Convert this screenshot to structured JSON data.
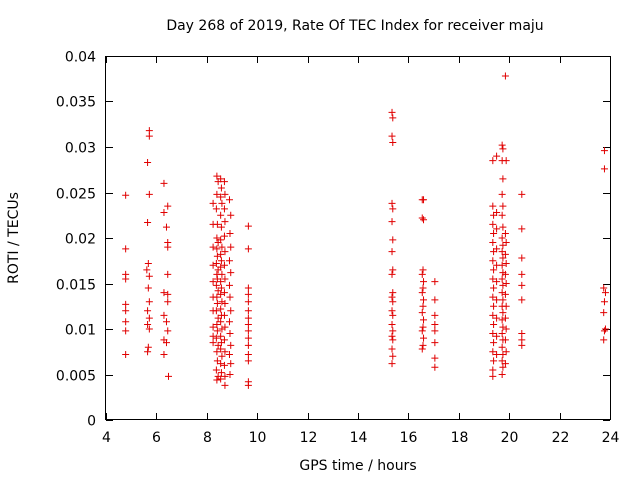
{
  "chart_data": {
    "type": "scatter",
    "title": "Day 268 of 2019, Rate Of TEC Index for receiver maju",
    "xlabel": "GPS time / hours",
    "ylabel": "ROTI / TECUs",
    "xlim": [
      4,
      24
    ],
    "ylim": [
      0,
      0.04
    ],
    "x_ticks": [
      "4",
      "6",
      "8",
      "10",
      "12",
      "14",
      "16",
      "18",
      "20",
      "22",
      "24"
    ],
    "y_ticks": [
      "0",
      "0.005",
      "0.01",
      "0.015",
      "0.02",
      "0.025",
      "0.03",
      "0.035",
      "0.04"
    ],
    "marker": "plus",
    "color": "#e00000",
    "points": [
      [
        4.78,
        0.0247
      ],
      [
        4.78,
        0.0188
      ],
      [
        4.78,
        0.016
      ],
      [
        4.78,
        0.0155
      ],
      [
        4.78,
        0.0127
      ],
      [
        4.78,
        0.012
      ],
      [
        4.78,
        0.0108
      ],
      [
        4.78,
        0.0098
      ],
      [
        4.78,
        0.0072
      ],
      [
        5.65,
        0.0283
      ],
      [
        5.72,
        0.0318
      ],
      [
        5.72,
        0.0312
      ],
      [
        5.72,
        0.0248
      ],
      [
        5.65,
        0.0217
      ],
      [
        5.68,
        0.0172
      ],
      [
        5.62,
        0.0165
      ],
      [
        5.72,
        0.0158
      ],
      [
        5.68,
        0.0145
      ],
      [
        5.72,
        0.013
      ],
      [
        5.65,
        0.012
      ],
      [
        5.72,
        0.0112
      ],
      [
        5.65,
        0.0105
      ],
      [
        5.72,
        0.01
      ],
      [
        5.68,
        0.008
      ],
      [
        5.65,
        0.0075
      ],
      [
        6.3,
        0.026
      ],
      [
        6.3,
        0.0228
      ],
      [
        6.45,
        0.0235
      ],
      [
        6.4,
        0.0212
      ],
      [
        6.45,
        0.0195
      ],
      [
        6.45,
        0.019
      ],
      [
        6.3,
        0.014
      ],
      [
        6.45,
        0.0138
      ],
      [
        6.45,
        0.016
      ],
      [
        6.45,
        0.013
      ],
      [
        6.3,
        0.0115
      ],
      [
        6.4,
        0.0108
      ],
      [
        6.45,
        0.0098
      ],
      [
        6.3,
        0.0088
      ],
      [
        6.4,
        0.0085
      ],
      [
        6.3,
        0.0072
      ],
      [
        6.48,
        0.0048
      ],
      [
        8.25,
        0.0238
      ],
      [
        8.25,
        0.0215
      ],
      [
        8.25,
        0.019
      ],
      [
        8.25,
        0.017
      ],
      [
        8.25,
        0.0152
      ],
      [
        8.25,
        0.0135
      ],
      [
        8.25,
        0.012
      ],
      [
        8.25,
        0.0102
      ],
      [
        8.25,
        0.0092
      ],
      [
        8.25,
        0.0085
      ],
      [
        8.4,
        0.0268
      ],
      [
        8.45,
        0.0262
      ],
      [
        8.4,
        0.0248
      ],
      [
        8.38,
        0.0232
      ],
      [
        8.42,
        0.0215
      ],
      [
        8.4,
        0.02
      ],
      [
        8.45,
        0.0195
      ],
      [
        8.4,
        0.0188
      ],
      [
        8.42,
        0.018
      ],
      [
        8.38,
        0.0172
      ],
      [
        8.45,
        0.0165
      ],
      [
        8.4,
        0.016
      ],
      [
        8.42,
        0.0155
      ],
      [
        8.38,
        0.0148
      ],
      [
        8.45,
        0.0142
      ],
      [
        8.4,
        0.0135
      ],
      [
        8.42,
        0.0128
      ],
      [
        8.38,
        0.012
      ],
      [
        8.45,
        0.0112
      ],
      [
        8.4,
        0.0105
      ],
      [
        8.42,
        0.0098
      ],
      [
        8.38,
        0.009
      ],
      [
        8.45,
        0.0082
      ],
      [
        8.4,
        0.0075
      ],
      [
        8.42,
        0.0065
      ],
      [
        8.38,
        0.0055
      ],
      [
        8.45,
        0.0048
      ],
      [
        8.4,
        0.0044
      ],
      [
        8.55,
        0.0265
      ],
      [
        8.58,
        0.0255
      ],
      [
        8.55,
        0.0245
      ],
      [
        8.6,
        0.0238
      ],
      [
        8.55,
        0.0225
      ],
      [
        8.58,
        0.0212
      ],
      [
        8.55,
        0.0198
      ],
      [
        8.6,
        0.019
      ],
      [
        8.55,
        0.0182
      ],
      [
        8.58,
        0.0175
      ],
      [
        8.55,
        0.0168
      ],
      [
        8.6,
        0.016
      ],
      [
        8.55,
        0.0152
      ],
      [
        8.58,
        0.0145
      ],
      [
        8.55,
        0.0138
      ],
      [
        8.6,
        0.013
      ],
      [
        8.55,
        0.0122
      ],
      [
        8.58,
        0.0115
      ],
      [
        8.55,
        0.0108
      ],
      [
        8.6,
        0.01
      ],
      [
        8.55,
        0.0092
      ],
      [
        8.58,
        0.0085
      ],
      [
        8.55,
        0.0078
      ],
      [
        8.6,
        0.007
      ],
      [
        8.55,
        0.0062
      ],
      [
        8.58,
        0.0052
      ],
      [
        8.55,
        0.0045
      ],
      [
        8.7,
        0.0262
      ],
      [
        8.72,
        0.0248
      ],
      [
        8.7,
        0.0232
      ],
      [
        8.72,
        0.0218
      ],
      [
        8.7,
        0.0202
      ],
      [
        8.72,
        0.0185
      ],
      [
        8.7,
        0.017
      ],
      [
        8.72,
        0.0155
      ],
      [
        8.7,
        0.014
      ],
      [
        8.72,
        0.0128
      ],
      [
        8.7,
        0.0115
      ],
      [
        8.72,
        0.0102
      ],
      [
        8.7,
        0.0088
      ],
      [
        8.72,
        0.0075
      ],
      [
        8.7,
        0.006
      ],
      [
        8.72,
        0.0048
      ],
      [
        8.72,
        0.0038
      ],
      [
        8.9,
        0.0242
      ],
      [
        8.95,
        0.0225
      ],
      [
        8.92,
        0.0205
      ],
      [
        8.95,
        0.019
      ],
      [
        8.9,
        0.0175
      ],
      [
        8.95,
        0.0162
      ],
      [
        8.9,
        0.0148
      ],
      [
        8.92,
        0.0135
      ],
      [
        8.95,
        0.012
      ],
      [
        8.9,
        0.0108
      ],
      [
        8.92,
        0.0095
      ],
      [
        8.95,
        0.0082
      ],
      [
        8.9,
        0.0072
      ],
      [
        8.95,
        0.0062
      ],
      [
        8.92,
        0.005
      ],
      [
        9.65,
        0.0213
      ],
      [
        9.65,
        0.0188
      ],
      [
        9.65,
        0.0145
      ],
      [
        9.65,
        0.0138
      ],
      [
        9.65,
        0.013
      ],
      [
        9.65,
        0.012
      ],
      [
        9.65,
        0.0112
      ],
      [
        9.65,
        0.0105
      ],
      [
        9.65,
        0.0098
      ],
      [
        9.65,
        0.009
      ],
      [
        9.65,
        0.0082
      ],
      [
        9.65,
        0.0072
      ],
      [
        9.65,
        0.0065
      ],
      [
        9.65,
        0.0042
      ],
      [
        9.65,
        0.0038
      ],
      [
        15.35,
        0.0338
      ],
      [
        15.38,
        0.0332
      ],
      [
        15.35,
        0.0312
      ],
      [
        15.38,
        0.0305
      ],
      [
        15.35,
        0.0238
      ],
      [
        15.38,
        0.0232
      ],
      [
        15.35,
        0.0218
      ],
      [
        15.38,
        0.0198
      ],
      [
        15.35,
        0.0185
      ],
      [
        15.38,
        0.0165
      ],
      [
        15.35,
        0.016
      ],
      [
        15.38,
        0.014
      ],
      [
        15.35,
        0.0135
      ],
      [
        15.38,
        0.013
      ],
      [
        15.35,
        0.012
      ],
      [
        15.38,
        0.0115
      ],
      [
        15.35,
        0.0105
      ],
      [
        15.38,
        0.0098
      ],
      [
        15.35,
        0.0092
      ],
      [
        15.38,
        0.0088
      ],
      [
        15.35,
        0.0078
      ],
      [
        15.38,
        0.007
      ],
      [
        15.35,
        0.0062
      ],
      [
        16.55,
        0.0242
      ],
      [
        16.6,
        0.0242
      ],
      [
        16.55,
        0.0222
      ],
      [
        16.6,
        0.022
      ],
      [
        16.58,
        0.0165
      ],
      [
        16.55,
        0.016
      ],
      [
        16.6,
        0.0152
      ],
      [
        16.58,
        0.0145
      ],
      [
        16.55,
        0.014
      ],
      [
        16.6,
        0.0132
      ],
      [
        16.58,
        0.0125
      ],
      [
        16.55,
        0.0118
      ],
      [
        16.6,
        0.011
      ],
      [
        16.58,
        0.0102
      ],
      [
        16.55,
        0.0098
      ],
      [
        16.6,
        0.009
      ],
      [
        16.58,
        0.0082
      ],
      [
        16.55,
        0.0078
      ],
      [
        17.05,
        0.0152
      ],
      [
        17.05,
        0.0132
      ],
      [
        17.05,
        0.0115
      ],
      [
        17.05,
        0.0105
      ],
      [
        17.05,
        0.0098
      ],
      [
        17.05,
        0.0085
      ],
      [
        17.05,
        0.0068
      ],
      [
        17.05,
        0.0058
      ],
      [
        19.35,
        0.0285
      ],
      [
        19.35,
        0.0235
      ],
      [
        19.38,
        0.0225
      ],
      [
        19.35,
        0.0215
      ],
      [
        19.38,
        0.0205
      ],
      [
        19.35,
        0.0195
      ],
      [
        19.38,
        0.0185
      ],
      [
        19.35,
        0.0175
      ],
      [
        19.38,
        0.0165
      ],
      [
        19.35,
        0.0155
      ],
      [
        19.38,
        0.0145
      ],
      [
        19.35,
        0.0135
      ],
      [
        19.38,
        0.0125
      ],
      [
        19.35,
        0.0115
      ],
      [
        19.38,
        0.0105
      ],
      [
        19.35,
        0.0095
      ],
      [
        19.38,
        0.0085
      ],
      [
        19.35,
        0.0075
      ],
      [
        19.38,
        0.0065
      ],
      [
        19.35,
        0.0055
      ],
      [
        19.35,
        0.0048
      ],
      [
        19.5,
        0.029
      ],
      [
        19.5,
        0.0228
      ],
      [
        19.5,
        0.021
      ],
      [
        19.5,
        0.0188
      ],
      [
        19.5,
        0.017
      ],
      [
        19.5,
        0.0152
      ],
      [
        19.5,
        0.0132
      ],
      [
        19.5,
        0.0112
      ],
      [
        19.5,
        0.0092
      ],
      [
        19.5,
        0.0072
      ],
      [
        19.72,
        0.0302
      ],
      [
        19.75,
        0.0298
      ],
      [
        19.72,
        0.0285
      ],
      [
        19.75,
        0.0265
      ],
      [
        19.72,
        0.0248
      ],
      [
        19.75,
        0.0235
      ],
      [
        19.72,
        0.0225
      ],
      [
        19.75,
        0.0212
      ],
      [
        19.72,
        0.02
      ],
      [
        19.75,
        0.0192
      ],
      [
        19.72,
        0.0185
      ],
      [
        19.75,
        0.0178
      ],
      [
        19.72,
        0.017
      ],
      [
        19.75,
        0.0162
      ],
      [
        19.72,
        0.0155
      ],
      [
        19.75,
        0.0148
      ],
      [
        19.72,
        0.014
      ],
      [
        19.75,
        0.0132
      ],
      [
        19.72,
        0.0125
      ],
      [
        19.75,
        0.0118
      ],
      [
        19.72,
        0.011
      ],
      [
        19.75,
        0.0102
      ],
      [
        19.72,
        0.0095
      ],
      [
        19.75,
        0.0088
      ],
      [
        19.72,
        0.008
      ],
      [
        19.75,
        0.0072
      ],
      [
        19.72,
        0.0065
      ],
      [
        19.75,
        0.0058
      ],
      [
        19.72,
        0.005
      ],
      [
        19.85,
        0.0378
      ],
      [
        19.88,
        0.0285
      ],
      [
        19.85,
        0.0205
      ],
      [
        19.88,
        0.0195
      ],
      [
        19.85,
        0.0182
      ],
      [
        19.88,
        0.0172
      ],
      [
        19.85,
        0.016
      ],
      [
        19.88,
        0.015
      ],
      [
        19.85,
        0.0138
      ],
      [
        19.88,
        0.0125
      ],
      [
        19.85,
        0.0112
      ],
      [
        19.88,
        0.01
      ],
      [
        19.85,
        0.0088
      ],
      [
        19.88,
        0.0075
      ],
      [
        19.85,
        0.0062
      ],
      [
        20.5,
        0.0248
      ],
      [
        20.5,
        0.021
      ],
      [
        20.5,
        0.0178
      ],
      [
        20.5,
        0.016
      ],
      [
        20.5,
        0.0148
      ],
      [
        20.5,
        0.0132
      ],
      [
        20.5,
        0.0095
      ],
      [
        20.5,
        0.0088
      ],
      [
        20.5,
        0.0082
      ],
      [
        23.78,
        0.0296
      ],
      [
        23.78,
        0.0276
      ],
      [
        23.75,
        0.0145
      ],
      [
        23.82,
        0.014
      ],
      [
        23.78,
        0.013
      ],
      [
        23.75,
        0.0118
      ],
      [
        23.82,
        0.01
      ],
      [
        23.78,
        0.0098
      ],
      [
        23.75,
        0.0088
      ]
    ]
  }
}
